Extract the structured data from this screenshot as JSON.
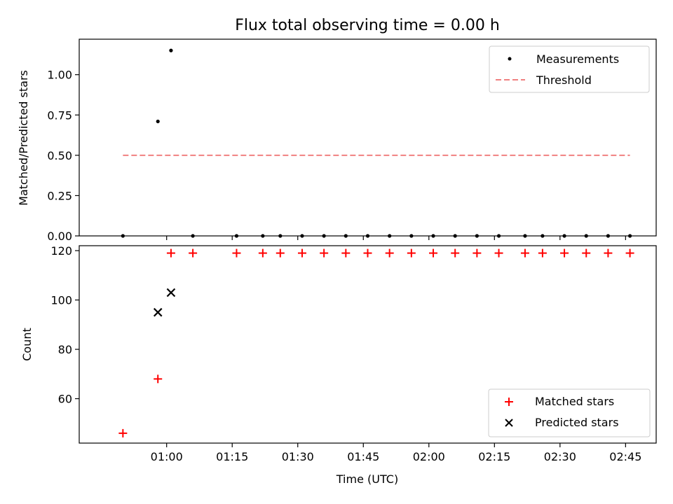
{
  "title": "Flux total observing time = 0.00 h",
  "chart_data": [
    {
      "type": "scatter",
      "ylabel": "Matched/Predicted stars",
      "ylim": [
        0,
        1.22
      ],
      "yticks": [
        "0.00",
        "0.25",
        "0.50",
        "0.75",
        "1.00"
      ],
      "legend_position": "top-right",
      "x_time": [
        "00:50",
        "00:58",
        "01:01",
        "01:06",
        "01:16",
        "01:22",
        "01:26",
        "01:31",
        "01:36",
        "01:41",
        "01:46",
        "01:51",
        "01:56",
        "02:01",
        "02:06",
        "02:11",
        "02:16",
        "02:22",
        "02:26",
        "02:31",
        "02:36",
        "02:41",
        "02:46"
      ],
      "series": [
        {
          "name": "Measurements",
          "marker": "dot",
          "color": "#000000",
          "values": [
            0,
            0.71,
            1.15,
            0,
            0,
            0,
            0,
            0,
            0,
            0,
            0,
            0,
            0,
            0,
            0,
            0,
            0,
            0,
            0,
            0,
            0,
            0,
            0
          ]
        },
        {
          "name": "Threshold",
          "style": "dashed",
          "color": "#f08080",
          "x_range": [
            "00:50",
            "02:46"
          ],
          "value": 0.5
        }
      ]
    },
    {
      "type": "scatter",
      "ylabel": "Count",
      "xlabel": "Time (UTC)",
      "ylim": [
        42,
        122
      ],
      "yticks": [
        "60",
        "80",
        "100",
        "120"
      ],
      "xlim": [
        "00:40",
        "02:52"
      ],
      "xticks": [
        "01:00",
        "01:15",
        "01:30",
        "01:45",
        "02:00",
        "02:15",
        "02:30",
        "02:45"
      ],
      "legend_position": "bottom-right",
      "series": [
        {
          "name": "Matched stars",
          "marker": "plus",
          "color": "#ff0000",
          "x_time": [
            "00:50",
            "00:58",
            "01:01",
            "01:06",
            "01:16",
            "01:22",
            "01:26",
            "01:31",
            "01:36",
            "01:41",
            "01:46",
            "01:51",
            "01:56",
            "02:01",
            "02:06",
            "02:11",
            "02:16",
            "02:22",
            "02:26",
            "02:31",
            "02:36",
            "02:41",
            "02:46"
          ],
          "values": [
            46,
            68,
            119,
            119,
            119,
            119,
            119,
            119,
            119,
            119,
            119,
            119,
            119,
            119,
            119,
            119,
            119,
            119,
            119,
            119,
            119,
            119,
            119
          ]
        },
        {
          "name": "Predicted stars",
          "marker": "x",
          "color": "#000000",
          "x_time": [
            "00:58",
            "01:01"
          ],
          "values": [
            95,
            103
          ]
        }
      ]
    }
  ]
}
